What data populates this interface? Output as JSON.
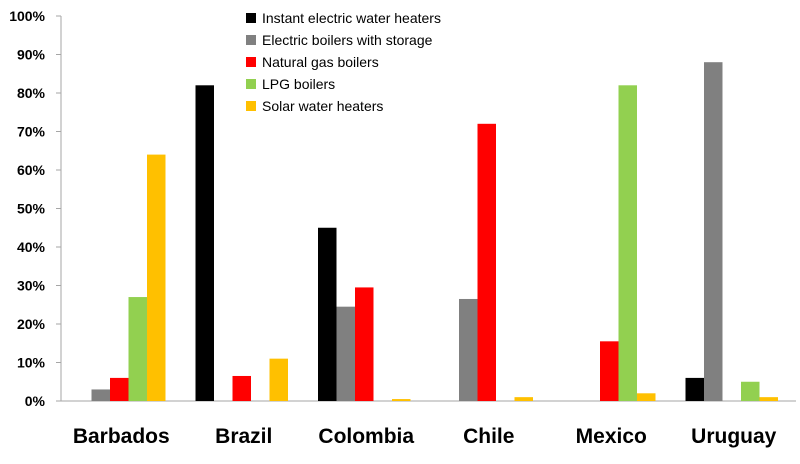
{
  "chart_data": {
    "type": "bar",
    "categories": [
      "Barbados",
      "Brazil",
      "Colombia",
      "Chile",
      "Mexico",
      "Uruguay"
    ],
    "yticks": [
      "0%",
      "10%",
      "20%",
      "30%",
      "40%",
      "50%",
      "60%",
      "70%",
      "80%",
      "90%",
      "100%"
    ],
    "ylim": [
      0,
      100
    ],
    "grid": false,
    "legend_position": "top-center",
    "series": [
      {
        "name": "Instant electric water heaters",
        "color": "#000000",
        "values": [
          0,
          82,
          45,
          0,
          0,
          6
        ]
      },
      {
        "name": "Electric boilers with storage",
        "color": "#808080",
        "values": [
          3,
          0,
          24.5,
          26.5,
          0,
          88
        ]
      },
      {
        "name": "Natural gas boilers",
        "color": "#ff0000",
        "values": [
          6,
          6.5,
          29.5,
          72,
          15.5,
          0
        ]
      },
      {
        "name": "LPG boilers",
        "color": "#92d050",
        "values": [
          27,
          0,
          0,
          0,
          82,
          5
        ]
      },
      {
        "name": "Solar water heaters",
        "color": "#ffc000",
        "values": [
          64,
          11,
          0.5,
          1,
          2,
          1
        ]
      }
    ]
  }
}
